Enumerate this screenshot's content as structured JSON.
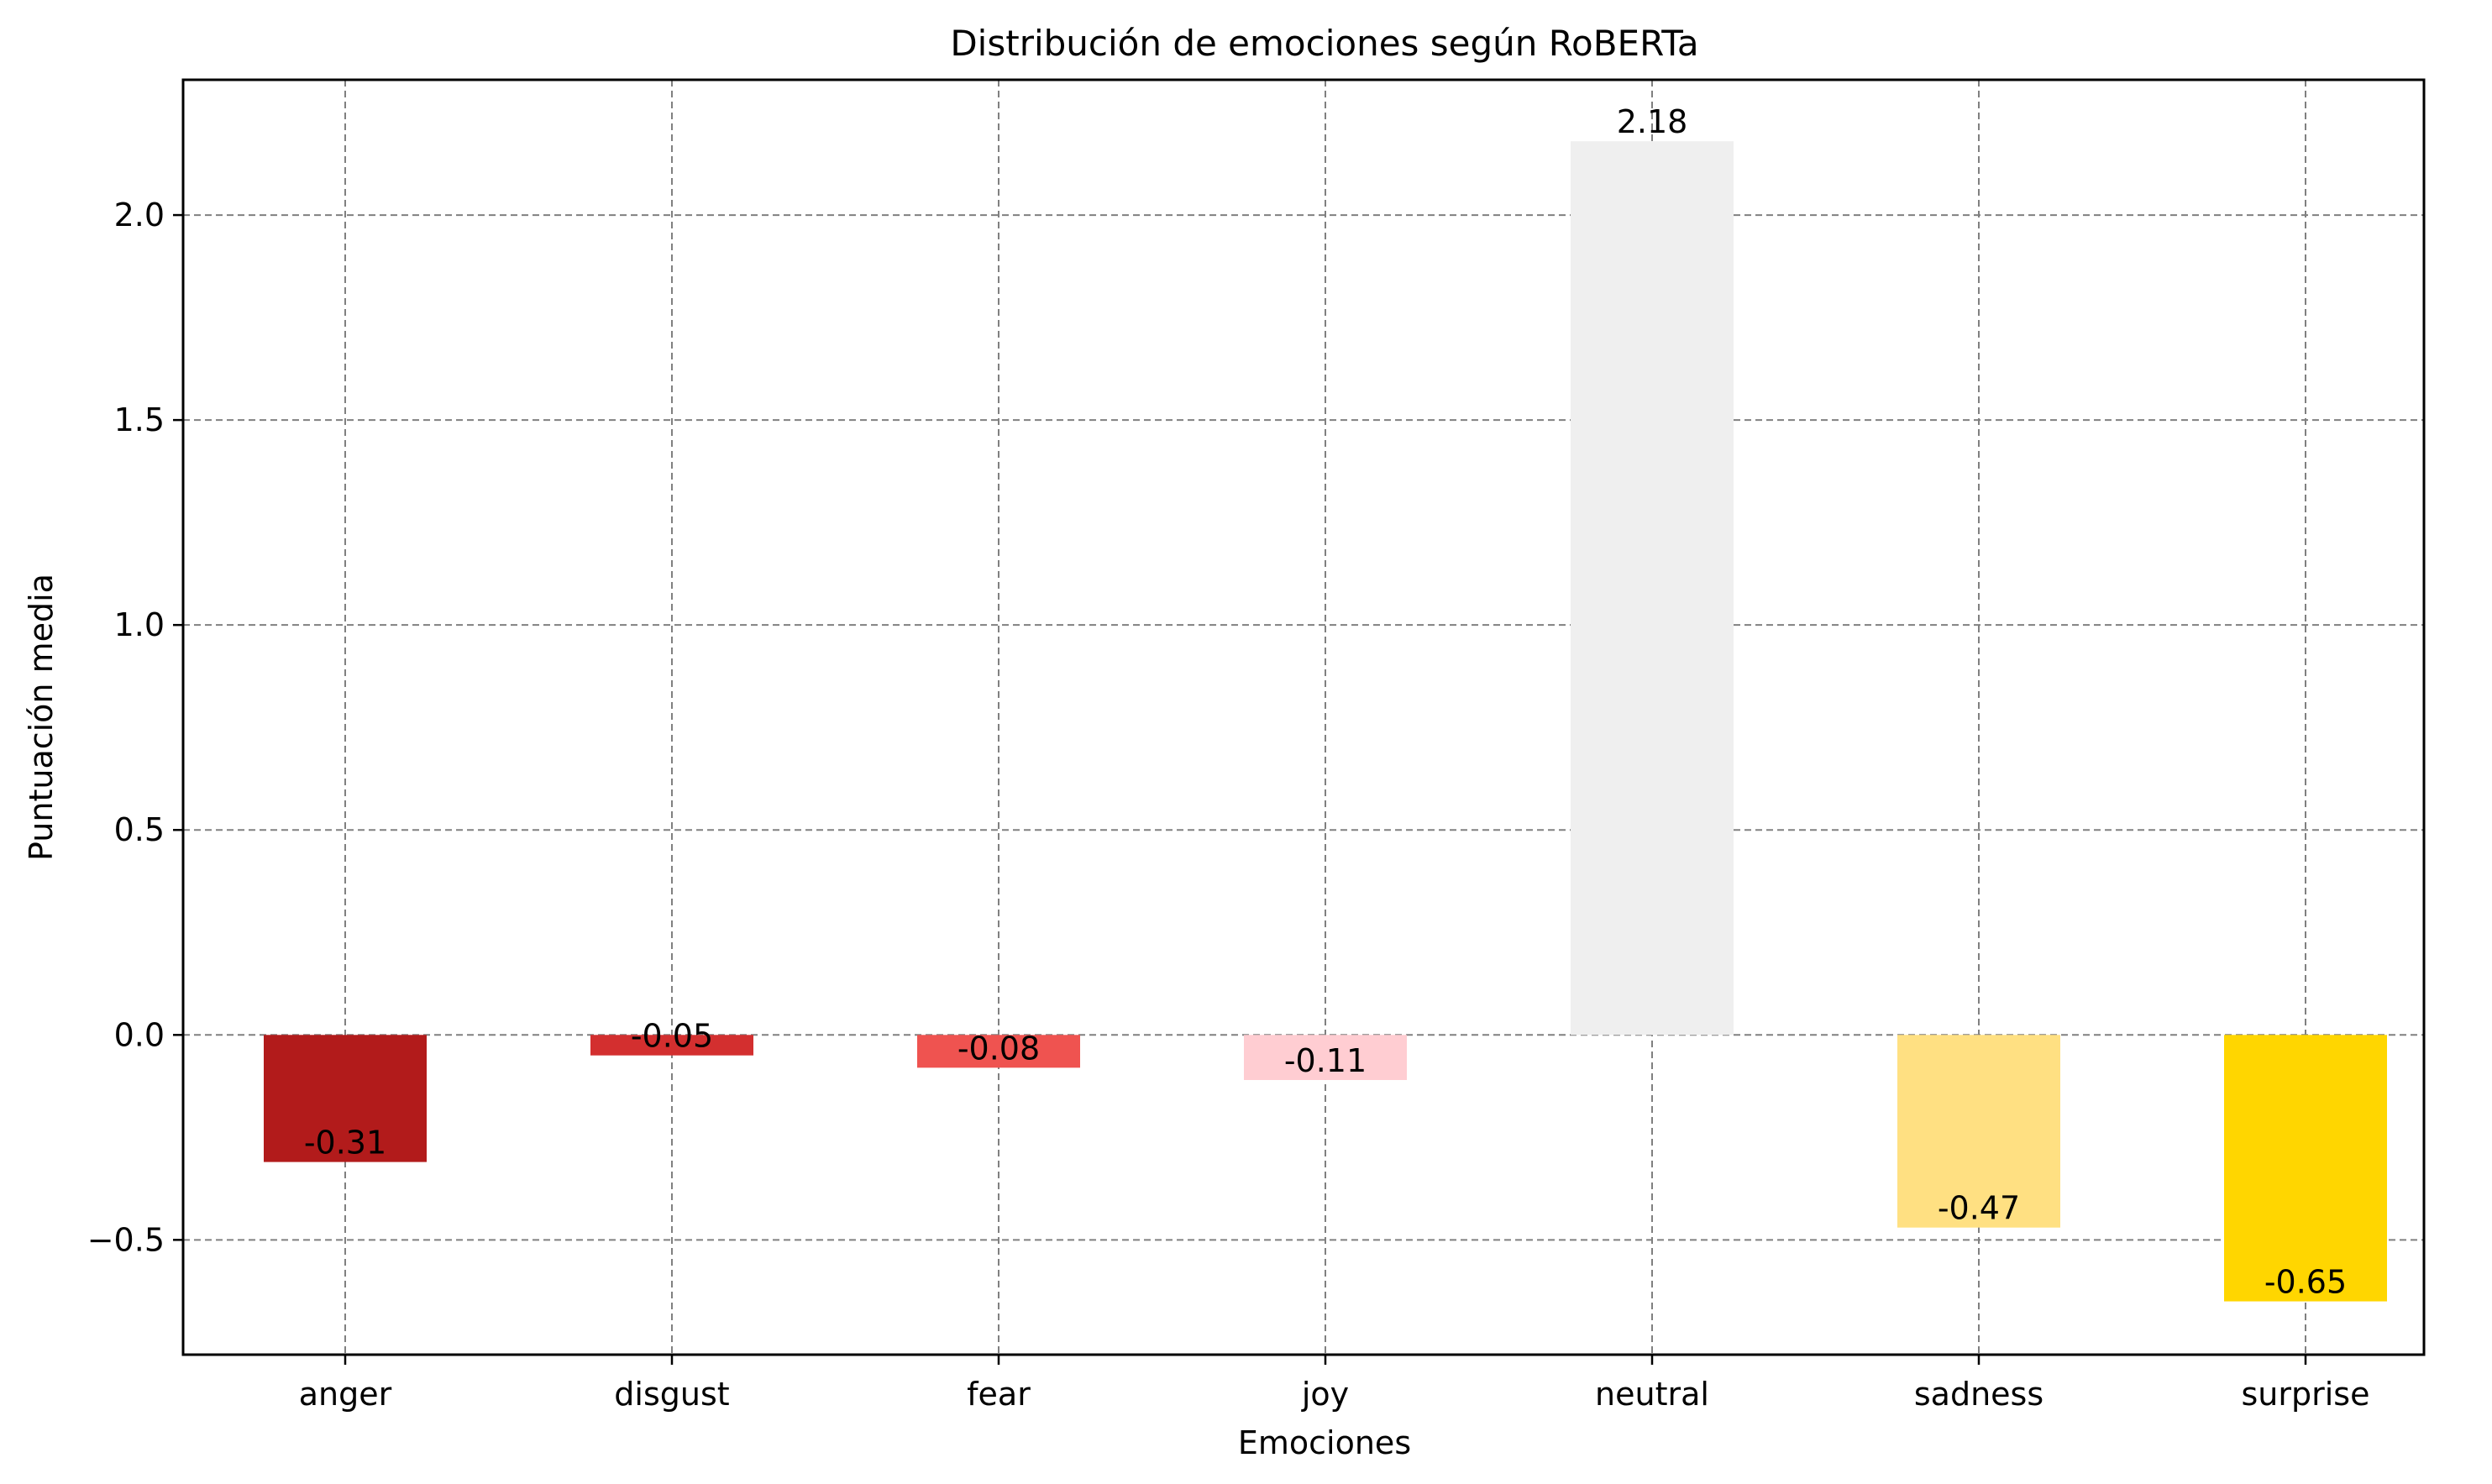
{
  "chart_data": {
    "type": "bar",
    "title": "Distribución de emociones según RoBERTa",
    "xlabel": "Emociones",
    "ylabel": "Puntuación media",
    "categories": [
      "anger",
      "disgust",
      "fear",
      "joy",
      "neutral",
      "sadness",
      "surprise"
    ],
    "values": [
      -0.31,
      -0.05,
      -0.08,
      -0.11,
      2.18,
      -0.47,
      -0.65
    ],
    "value_labels": [
      "-0.31",
      "-0.05",
      "-0.08",
      "-0.11",
      "2.18",
      "-0.47",
      "-0.65"
    ],
    "colors": [
      "#b21b1b",
      "#d32f2f",
      "#ef5350",
      "#ffcdd2",
      "#efefef",
      "#ffe082",
      "#ffd600"
    ],
    "ylim": [
      -0.78,
      2.33
    ],
    "yticks": [
      -0.5,
      0.0,
      0.5,
      1.0,
      1.5,
      2.0
    ],
    "ytick_labels": [
      "−0.5",
      "0.0",
      "0.5",
      "1.0",
      "1.5",
      "2.0"
    ],
    "grid": true,
    "legend": "none"
  }
}
